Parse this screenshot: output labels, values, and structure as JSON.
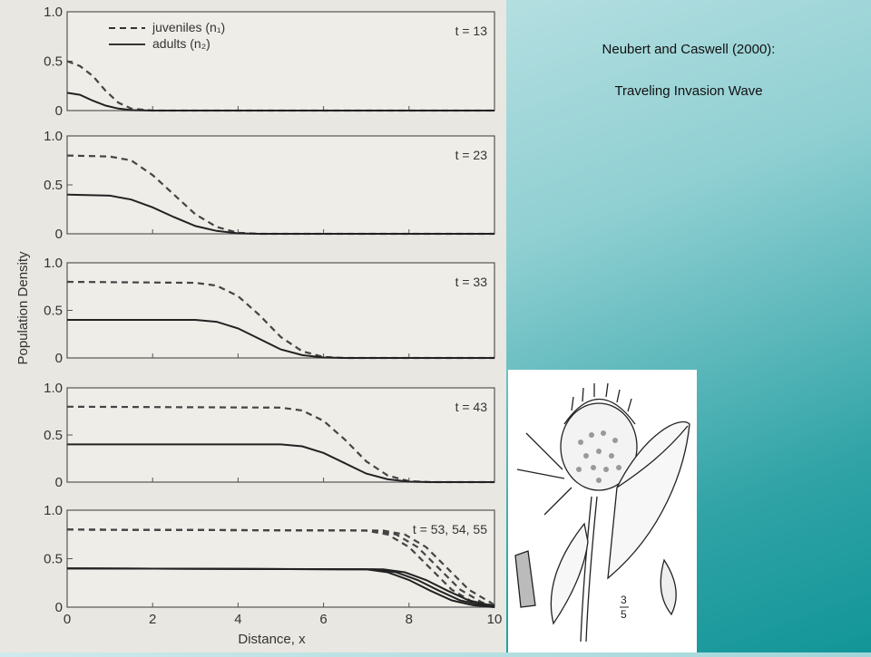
{
  "caption": {
    "line1": "Neubert and Caswell (2000):",
    "line2": "Traveling Invasion Wave"
  },
  "thistle": {
    "fraction_label": "3",
    "fraction_denom": "5"
  },
  "colors": {
    "juveniles": "#444444",
    "adults": "#222222",
    "frame": "#555555"
  },
  "chart_data": {
    "type": "line",
    "xlabel": "Distance, x",
    "ylabel": "Population Density",
    "xlim": [
      0,
      10
    ],
    "ylim": [
      0,
      1.0
    ],
    "x_ticks": [
      "0",
      "2",
      "4",
      "6",
      "8",
      "10"
    ],
    "y_ticks": [
      "0",
      "0.5",
      "1.0"
    ],
    "legend": {
      "placement": "top-left",
      "entries": [
        {
          "label": "juveniles (n₁)",
          "style": "dashed"
        },
        {
          "label": "adults (n₂)",
          "style": "solid"
        }
      ]
    },
    "panels": [
      {
        "label": "t = 13",
        "series": [
          {
            "name": "juveniles",
            "x": [
              0,
              0.3,
              0.6,
              0.9,
              1.2,
              1.5,
              2,
              10
            ],
            "y": [
              0.5,
              0.45,
              0.35,
              0.2,
              0.08,
              0.02,
              0,
              0
            ]
          },
          {
            "name": "adults",
            "x": [
              0,
              0.3,
              0.6,
              0.9,
              1.2,
              1.5,
              2,
              10
            ],
            "y": [
              0.18,
              0.16,
              0.1,
              0.05,
              0.02,
              0.005,
              0,
              0
            ]
          }
        ]
      },
      {
        "label": "t = 23",
        "series": [
          {
            "name": "juveniles",
            "x": [
              0,
              1,
              1.5,
              2,
              2.5,
              3,
              3.5,
              4,
              4.5,
              10
            ],
            "y": [
              0.8,
              0.79,
              0.75,
              0.6,
              0.4,
              0.2,
              0.07,
              0.01,
              0,
              0
            ]
          },
          {
            "name": "adults",
            "x": [
              0,
              1,
              1.5,
              2,
              2.5,
              3,
              3.5,
              4,
              4.5,
              10
            ],
            "y": [
              0.4,
              0.39,
              0.35,
              0.27,
              0.17,
              0.08,
              0.03,
              0.005,
              0,
              0
            ]
          }
        ]
      },
      {
        "label": "t = 33",
        "series": [
          {
            "name": "juveniles",
            "x": [
              0,
              3,
              3.5,
              4,
              4.5,
              5,
              5.5,
              6,
              6.5,
              10
            ],
            "y": [
              0.8,
              0.79,
              0.76,
              0.65,
              0.45,
              0.22,
              0.07,
              0.01,
              0,
              0
            ]
          },
          {
            "name": "adults",
            "x": [
              0,
              3,
              3.5,
              4,
              4.5,
              5,
              5.5,
              6,
              6.5,
              10
            ],
            "y": [
              0.4,
              0.4,
              0.38,
              0.31,
              0.2,
              0.09,
              0.03,
              0.005,
              0,
              0
            ]
          }
        ]
      },
      {
        "label": "t = 43",
        "series": [
          {
            "name": "juveniles",
            "x": [
              0,
              5,
              5.5,
              6,
              6.5,
              7,
              7.5,
              8,
              8.5,
              10
            ],
            "y": [
              0.8,
              0.79,
              0.76,
              0.65,
              0.45,
              0.22,
              0.07,
              0.01,
              0,
              0
            ]
          },
          {
            "name": "adults",
            "x": [
              0,
              5,
              5.5,
              6,
              6.5,
              7,
              7.5,
              8,
              8.5,
              10
            ],
            "y": [
              0.4,
              0.4,
              0.38,
              0.31,
              0.2,
              0.09,
              0.03,
              0.005,
              0,
              0
            ]
          }
        ]
      },
      {
        "label": "t = 53, 54, 55",
        "series": [
          {
            "name": "juveniles t=53",
            "x": [
              0,
              7,
              7.5,
              8,
              8.5,
              9,
              9.5,
              10
            ],
            "y": [
              0.8,
              0.79,
              0.75,
              0.62,
              0.4,
              0.18,
              0.05,
              0
            ]
          },
          {
            "name": "juveniles t=54",
            "x": [
              0,
              7.2,
              7.7,
              8.2,
              8.7,
              9.2,
              9.7,
              10
            ],
            "y": [
              0.8,
              0.79,
              0.75,
              0.62,
              0.4,
              0.18,
              0.05,
              0.01
            ]
          },
          {
            "name": "juveniles t=55",
            "x": [
              0,
              7.4,
              7.9,
              8.4,
              8.9,
              9.4,
              9.9,
              10
            ],
            "y": [
              0.8,
              0.79,
              0.75,
              0.62,
              0.4,
              0.18,
              0.05,
              0.02
            ]
          },
          {
            "name": "adults t=53",
            "x": [
              0,
              7,
              7.5,
              8,
              8.5,
              9,
              9.5,
              10
            ],
            "y": [
              0.4,
              0.39,
              0.36,
              0.28,
              0.17,
              0.07,
              0.02,
              0
            ]
          },
          {
            "name": "adults t=54",
            "x": [
              0,
              7.2,
              7.7,
              8.2,
              8.7,
              9.2,
              9.7,
              10
            ],
            "y": [
              0.4,
              0.39,
              0.36,
              0.28,
              0.17,
              0.07,
              0.02,
              0.005
            ]
          },
          {
            "name": "adults t=55",
            "x": [
              0,
              7.4,
              7.9,
              8.4,
              8.9,
              9.4,
              9.9,
              10
            ],
            "y": [
              0.4,
              0.39,
              0.36,
              0.28,
              0.17,
              0.07,
              0.02,
              0.01
            ]
          }
        ]
      }
    ]
  }
}
